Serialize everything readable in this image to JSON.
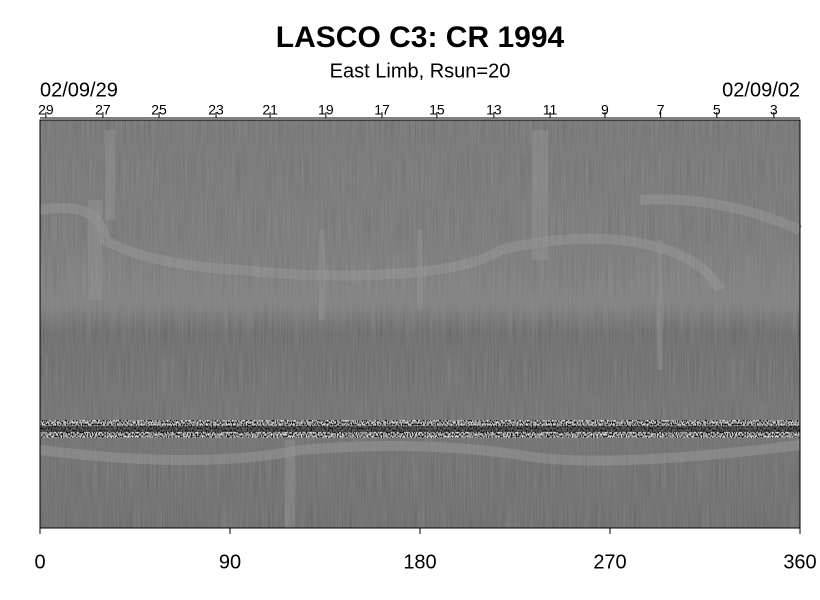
{
  "chart_data": {
    "type": "image",
    "title": "LASCO C3: CR 1994",
    "subtitle": "East Limb, Rsun=20",
    "start_date": "02/09/29",
    "end_date": "02/09/02",
    "xlim": [
      0,
      360
    ],
    "xticks": [
      0,
      90,
      180,
      270,
      360
    ],
    "x2lim": [
      0,
      360
    ],
    "x2ticks": [
      {
        "value": 2.8,
        "label": "29"
      },
      {
        "value": 29.8,
        "label": "27"
      },
      {
        "value": 56.4,
        "label": "25"
      },
      {
        "value": 83.4,
        "label": "23"
      },
      {
        "value": 109,
        "label": "21"
      },
      {
        "value": 135.4,
        "label": "19"
      },
      {
        "value": 162,
        "label": "17"
      },
      {
        "value": 188,
        "label": "15"
      },
      {
        "value": 215,
        "label": "13"
      },
      {
        "value": 241.6,
        "label": "11"
      },
      {
        "value": 267.6,
        "label": "9"
      },
      {
        "value": 294,
        "label": "7"
      },
      {
        "value": 320.6,
        "label": "5"
      },
      {
        "value": 347.6,
        "label": "3"
      }
    ]
  }
}
